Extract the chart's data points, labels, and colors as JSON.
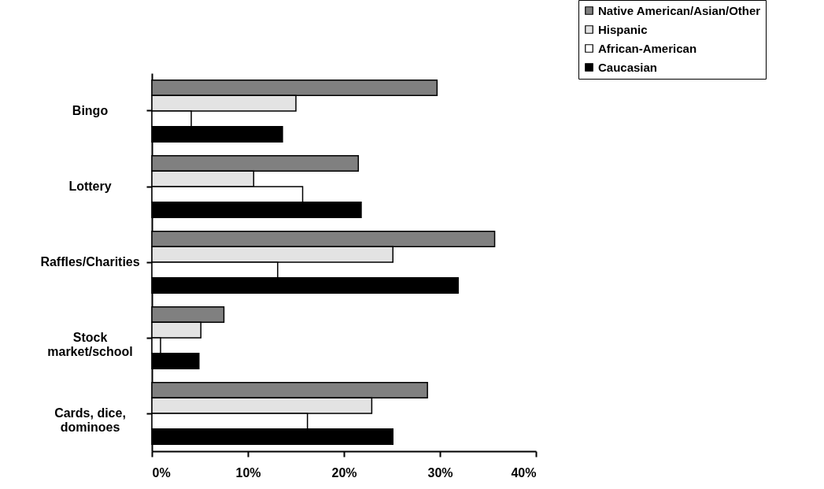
{
  "chart_data": {
    "type": "bar",
    "orientation": "horizontal",
    "categories": [
      "Bingo",
      "Lottery",
      "Raffles/Charities",
      "Stock\nmarket/school",
      "Cards, dice,\ndominoes"
    ],
    "series": [
      {
        "name": "Native American/Asian/Other",
        "color": "#808080",
        "values": [
          29.7,
          21.5,
          35.7,
          7.5,
          28.7
        ]
      },
      {
        "name": "Hispanic",
        "color": "#e3e3e3",
        "values": [
          15.0,
          10.6,
          25.1,
          5.1,
          22.9
        ]
      },
      {
        "name": "African-American",
        "color": "#ffffff",
        "values": [
          4.1,
          15.7,
          13.1,
          0.9,
          16.2
        ]
      },
      {
        "name": "Caucasian",
        "color": "#000000",
        "values": [
          13.6,
          21.8,
          31.9,
          4.9,
          25.1
        ]
      }
    ],
    "xlim": [
      0,
      40
    ],
    "xticks": [
      {
        "value": 0,
        "label": "0%"
      },
      {
        "value": 10,
        "label": "10%"
      },
      {
        "value": 20,
        "label": "20%"
      },
      {
        "value": 30,
        "label": "30%"
      },
      {
        "value": 40,
        "label": "40%"
      }
    ],
    "legend": "top right",
    "grid": false
  }
}
